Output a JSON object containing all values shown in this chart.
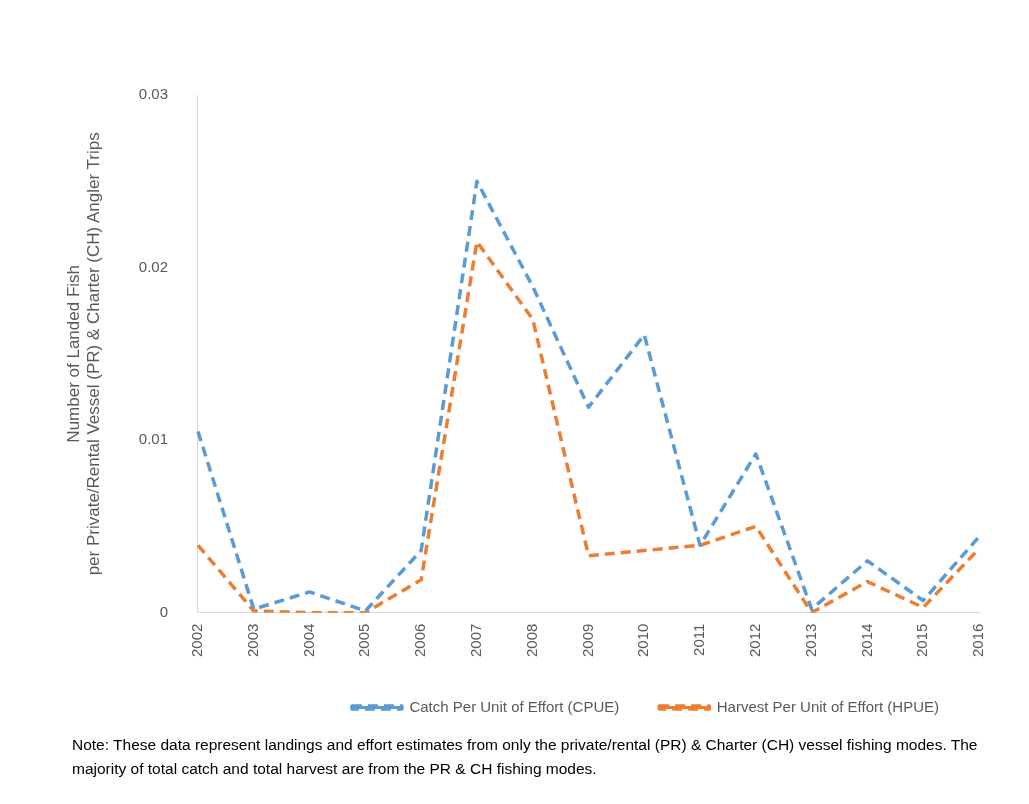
{
  "chart_data": {
    "type": "line",
    "ylabel": "Number of Landed Fish\nper Private/Rental Vessel (PR) & Charter (CH) Angler Trips",
    "categories": [
      "2002",
      "2003",
      "2004",
      "2005",
      "2006",
      "2007",
      "2008",
      "2009",
      "2010",
      "2011",
      "2012",
      "2013",
      "2014",
      "2015",
      "2016"
    ],
    "series": [
      {
        "name": "Catch Per Unit of Effort (CPUE)",
        "color": "#5b9bd5",
        "values": [
          0.0105,
          0.0002,
          0.0012,
          0.0001,
          0.0036,
          0.025,
          0.0189,
          0.0119,
          0.0161,
          0.0039,
          0.0092,
          0.0002,
          0.003,
          0.0007,
          0.0044
        ]
      },
      {
        "name": "Harvest Per Unit of Effort (HPUE)",
        "color": "#ed7d31",
        "values": [
          0.0039,
          0.0001,
          0,
          0,
          0.0019,
          0.0215,
          0.017,
          0.0033,
          0.0036,
          0.0039,
          0.005,
          0,
          0.0018,
          0.0003,
          0.0037
        ]
      }
    ],
    "ylim": [
      0,
      0.03
    ],
    "yticks": [
      0,
      0.01,
      0.02,
      0.03
    ],
    "grid": false,
    "legend": "bottom",
    "marker": "none",
    "line_style": "dashed",
    "annotations": [
      "Note:  These data represent landings and effort estimates from only the private/rental (PR) & Charter (CH) vessel fishing modes.  The majority of total catch and total harvest are from the PR & CH fishing modes."
    ]
  }
}
